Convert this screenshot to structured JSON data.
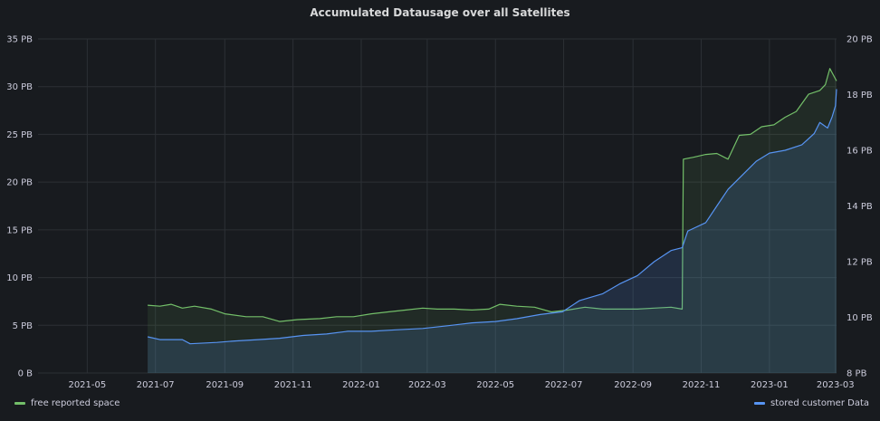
{
  "panel": {
    "title": "Accumulated Datausage over all Satellites"
  },
  "colors": {
    "background": "#181b1f",
    "grid": "#2c3035",
    "free": "#73bf69",
    "stored": "#5794f2"
  },
  "chart_data": {
    "type": "line",
    "title": "Accumulated Datausage over all Satellites",
    "x_axis": {
      "type": "time",
      "range": [
        "2021-03-18",
        "2023-03-02"
      ],
      "ticks": [
        "2021-05",
        "2021-07",
        "2021-09",
        "2021-11",
        "2022-01",
        "2022-03",
        "2022-05",
        "2022-07",
        "2022-09",
        "2022-11",
        "2023-01",
        "2023-03"
      ]
    },
    "y_left": {
      "unit": "PB",
      "range": [
        0,
        35
      ],
      "ticks": [
        "0 B",
        "5 PB",
        "10 PB",
        "15 PB",
        "20 PB",
        "25 PB",
        "30 PB",
        "35 PB"
      ]
    },
    "y_right": {
      "unit": "PB",
      "range": [
        8,
        20
      ],
      "ticks": [
        "8 PB",
        "10 PB",
        "12 PB",
        "14 PB",
        "16 PB",
        "18 PB",
        "20 PB"
      ]
    },
    "grid": true,
    "legend_placement": "bottom",
    "series": [
      {
        "name": "free reported space",
        "axis": "left",
        "color": "#73bf69",
        "points": [
          [
            "2021-06-24",
            7.1
          ],
          [
            "2021-07-05",
            7.0
          ],
          [
            "2021-07-15",
            7.2
          ],
          [
            "2021-07-25",
            6.8
          ],
          [
            "2021-08-05",
            7.0
          ],
          [
            "2021-08-20",
            6.7
          ],
          [
            "2021-09-01",
            6.2
          ],
          [
            "2021-09-20",
            5.9
          ],
          [
            "2021-10-05",
            5.9
          ],
          [
            "2021-10-20",
            5.4
          ],
          [
            "2021-11-05",
            5.6
          ],
          [
            "2021-11-25",
            5.7
          ],
          [
            "2021-12-10",
            5.9
          ],
          [
            "2021-12-25",
            5.9
          ],
          [
            "2022-01-10",
            6.2
          ],
          [
            "2022-01-25",
            6.4
          ],
          [
            "2022-02-10",
            6.6
          ],
          [
            "2022-02-25",
            6.8
          ],
          [
            "2022-03-10",
            6.7
          ],
          [
            "2022-03-25",
            6.7
          ],
          [
            "2022-04-10",
            6.6
          ],
          [
            "2022-04-25",
            6.7
          ],
          [
            "2022-05-05",
            7.2
          ],
          [
            "2022-05-20",
            7.0
          ],
          [
            "2022-06-05",
            6.9
          ],
          [
            "2022-06-20",
            6.4
          ],
          [
            "2022-07-05",
            6.6
          ],
          [
            "2022-07-20",
            6.9
          ],
          [
            "2022-08-05",
            6.7
          ],
          [
            "2022-08-20",
            6.7
          ],
          [
            "2022-09-05",
            6.7
          ],
          [
            "2022-09-20",
            6.8
          ],
          [
            "2022-10-05",
            6.9
          ],
          [
            "2022-10-15",
            6.7
          ],
          [
            "2022-10-16",
            22.4
          ],
          [
            "2022-10-25",
            22.6
          ],
          [
            "2022-11-05",
            22.9
          ],
          [
            "2022-11-15",
            23.0
          ],
          [
            "2022-11-25",
            22.4
          ],
          [
            "2022-12-05",
            24.9
          ],
          [
            "2022-12-15",
            25.0
          ],
          [
            "2022-12-25",
            25.8
          ],
          [
            "2023-01-05",
            26.0
          ],
          [
            "2023-01-15",
            26.8
          ],
          [
            "2023-01-25",
            27.4
          ],
          [
            "2023-02-05",
            29.2
          ],
          [
            "2023-02-15",
            29.6
          ],
          [
            "2023-02-20",
            30.2
          ],
          [
            "2023-02-24",
            31.9
          ],
          [
            "2023-03-02",
            30.6
          ]
        ]
      },
      {
        "name": "stored customer Data",
        "axis": "right",
        "color": "#5794f2",
        "points": [
          [
            "2021-06-24",
            9.3
          ],
          [
            "2021-07-05",
            9.2
          ],
          [
            "2021-07-25",
            9.2
          ],
          [
            "2021-08-01",
            9.05
          ],
          [
            "2021-08-25",
            9.1
          ],
          [
            "2021-09-10",
            9.15
          ],
          [
            "2021-10-01",
            9.2
          ],
          [
            "2021-10-20",
            9.25
          ],
          [
            "2021-11-10",
            9.35
          ],
          [
            "2021-12-01",
            9.4
          ],
          [
            "2021-12-20",
            9.5
          ],
          [
            "2022-01-10",
            9.5
          ],
          [
            "2022-02-01",
            9.55
          ],
          [
            "2022-02-25",
            9.6
          ],
          [
            "2022-03-20",
            9.7
          ],
          [
            "2022-04-10",
            9.8
          ],
          [
            "2022-05-01",
            9.85
          ],
          [
            "2022-05-20",
            9.95
          ],
          [
            "2022-06-10",
            10.1
          ],
          [
            "2022-06-30",
            10.2
          ],
          [
            "2022-07-15",
            10.6
          ],
          [
            "2022-08-05",
            10.85
          ],
          [
            "2022-08-20",
            11.2
          ],
          [
            "2022-09-05",
            11.5
          ],
          [
            "2022-09-20",
            12.0
          ],
          [
            "2022-10-05",
            12.4
          ],
          [
            "2022-10-15",
            12.5
          ],
          [
            "2022-10-20",
            13.1
          ],
          [
            "2022-11-05",
            13.4
          ],
          [
            "2022-11-15",
            14.0
          ],
          [
            "2022-11-25",
            14.6
          ],
          [
            "2022-12-05",
            15.0
          ],
          [
            "2022-12-20",
            15.6
          ],
          [
            "2023-01-01",
            15.9
          ],
          [
            "2023-01-15",
            16.0
          ],
          [
            "2023-01-30",
            16.2
          ],
          [
            "2023-02-10",
            16.6
          ],
          [
            "2023-02-15",
            17.0
          ],
          [
            "2023-02-22",
            16.8
          ],
          [
            "2023-02-26",
            17.2
          ],
          [
            "2023-03-01",
            17.6
          ],
          [
            "2023-03-02",
            18.2
          ]
        ]
      }
    ]
  },
  "legend": {
    "left_label": "free reported space",
    "right_label": "stored customer Data"
  }
}
